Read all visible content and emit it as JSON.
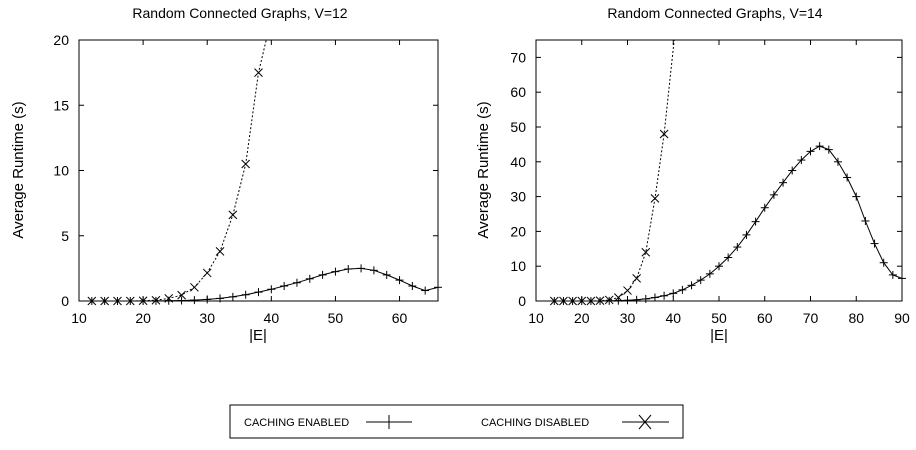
{
  "chart_data": [
    {
      "type": "line",
      "title": "Random Connected Graphs, V=12",
      "xlabel": "|E|",
      "ylabel": "Average Runtime (s)",
      "xlim": [
        10,
        66
      ],
      "ylim": [
        0,
        20
      ],
      "xticks": [
        10,
        20,
        30,
        40,
        50,
        60
      ],
      "yticks": [
        0,
        5,
        10,
        15,
        20
      ],
      "grid": false,
      "series": [
        {
          "name": "CACHING ENABLED",
          "marker": "plus",
          "style": "solid",
          "x": [
            12,
            14,
            16,
            18,
            20,
            22,
            24,
            26,
            28,
            30,
            32,
            34,
            36,
            38,
            40,
            42,
            44,
            46,
            48,
            50,
            52,
            54,
            56,
            58,
            60,
            62,
            64,
            66
          ],
          "y": [
            0,
            0,
            0,
            0,
            0,
            0.01,
            0.02,
            0.04,
            0.07,
            0.12,
            0.2,
            0.32,
            0.48,
            0.68,
            0.9,
            1.15,
            1.4,
            1.7,
            2.0,
            2.25,
            2.45,
            2.5,
            2.35,
            2.0,
            1.6,
            1.15,
            0.8,
            1.05
          ]
        },
        {
          "name": "CACHING DISABLED",
          "marker": "cross",
          "style": "dotted",
          "x": [
            12,
            14,
            16,
            18,
            20,
            22,
            24,
            26,
            28,
            30,
            32,
            34,
            36,
            38,
            39.2
          ],
          "y": [
            0,
            0,
            0,
            0,
            0.02,
            0.06,
            0.2,
            0.45,
            1.05,
            2.15,
            3.8,
            6.6,
            10.5,
            17.5,
            20
          ]
        }
      ]
    },
    {
      "type": "line",
      "title": "Random Connected Graphs, V=14",
      "xlabel": "|E|",
      "ylabel": "Average Runtime (s)",
      "xlim": [
        10,
        90
      ],
      "ylim": [
        0,
        75
      ],
      "xticks": [
        10,
        20,
        30,
        40,
        50,
        60,
        70,
        80,
        90
      ],
      "yticks": [
        0,
        10,
        20,
        30,
        40,
        50,
        60,
        70
      ],
      "grid": false,
      "series": [
        {
          "name": "CACHING ENABLED",
          "marker": "plus",
          "style": "solid",
          "x": [
            14,
            16,
            18,
            20,
            22,
            24,
            26,
            28,
            30,
            32,
            34,
            36,
            38,
            40,
            42,
            44,
            46,
            48,
            50,
            52,
            54,
            56,
            58,
            60,
            62,
            64,
            66,
            68,
            70,
            72,
            74,
            76,
            78,
            80,
            82,
            84,
            86,
            88,
            90
          ],
          "y": [
            0,
            0,
            0,
            0,
            0,
            0,
            0.05,
            0.1,
            0.2,
            0.35,
            0.6,
            1.0,
            1.5,
            2.2,
            3.2,
            4.5,
            6.0,
            7.8,
            10.0,
            12.5,
            15.5,
            19.0,
            22.8,
            26.8,
            30.5,
            34.0,
            37.5,
            40.5,
            43.0,
            44.5,
            43.5,
            40.0,
            35.5,
            30.0,
            23.0,
            16.5,
            11.0,
            7.5,
            6.5
          ]
        },
        {
          "name": "CACHING DISABLED",
          "marker": "cross",
          "style": "dotted",
          "x": [
            14,
            16,
            18,
            20,
            22,
            24,
            26,
            28,
            30,
            32,
            34,
            36,
            38,
            40.2
          ],
          "y": [
            0,
            0,
            0,
            0,
            0,
            0.1,
            0.3,
            1.0,
            3.0,
            6.5,
            14.0,
            29.5,
            48.0,
            75
          ]
        }
      ]
    }
  ],
  "legend": {
    "placement": "bottom-center",
    "entries": [
      {
        "label": "CACHING ENABLED",
        "marker": "plus"
      },
      {
        "label": "CACHING DISABLED",
        "marker": "cross"
      }
    ]
  }
}
